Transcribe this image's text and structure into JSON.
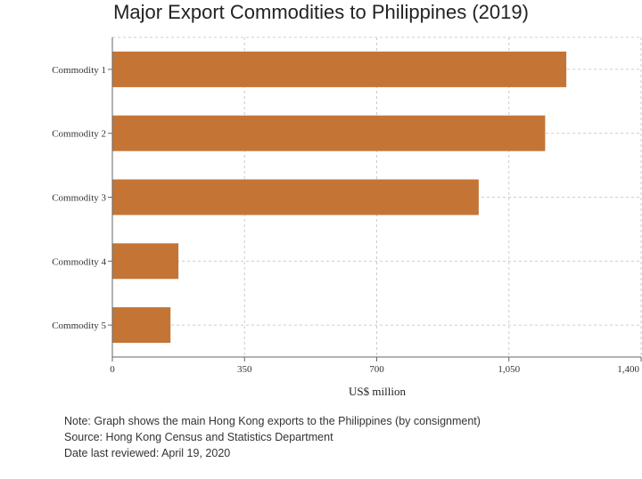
{
  "chart_data": {
    "type": "bar",
    "orientation": "horizontal",
    "title": "Major Export Commodities to Philippines (2019)",
    "categories": [
      "Commodity 1",
      "Commodity 2",
      "Commodity 3",
      "Commodity 4",
      "Commodity 5"
    ],
    "values": [
      1202,
      1146,
      970,
      175,
      154
    ],
    "xlabel": "US$ million",
    "ylabel": "",
    "xlim": [
      0,
      1400
    ],
    "xticks": [
      "0",
      "350",
      "700",
      "1,050",
      "1,400"
    ],
    "xtick_values": [
      0,
      350,
      700,
      1050,
      1400
    ],
    "grid": true,
    "bar_color": "#c47535"
  },
  "notes": {
    "note": "Note: Graph shows the main Hong Kong exports to the Philippines (by consignment)",
    "source": "Source: Hong Kong Census and Statistics Department",
    "reviewed": "Date last reviewed: April 19, 2020"
  }
}
